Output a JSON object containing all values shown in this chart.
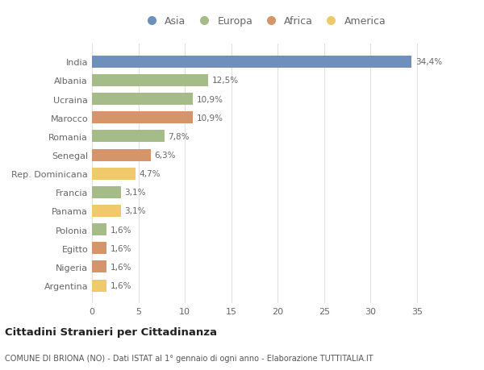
{
  "categories": [
    "India",
    "Albania",
    "Ucraina",
    "Marocco",
    "Romania",
    "Senegal",
    "Rep. Dominicana",
    "Francia",
    "Panama",
    "Polonia",
    "Egitto",
    "Nigeria",
    "Argentina"
  ],
  "values": [
    34.4,
    12.5,
    10.9,
    10.9,
    7.8,
    6.3,
    4.7,
    3.1,
    3.1,
    1.6,
    1.6,
    1.6,
    1.6
  ],
  "labels": [
    "34,4%",
    "12,5%",
    "10,9%",
    "10,9%",
    "7,8%",
    "6,3%",
    "4,7%",
    "3,1%",
    "3,1%",
    "1,6%",
    "1,6%",
    "1,6%",
    "1,6%"
  ],
  "colors": [
    "#6f8fbd",
    "#a5bb88",
    "#a5bb88",
    "#d4956a",
    "#a5bb88",
    "#d4956a",
    "#f0c96a",
    "#a5bb88",
    "#f0c96a",
    "#a5bb88",
    "#d4956a",
    "#d4956a",
    "#f0c96a"
  ],
  "legend": [
    {
      "label": "Asia",
      "color": "#6f8fbd"
    },
    {
      "label": "Europa",
      "color": "#a5bb88"
    },
    {
      "label": "Africa",
      "color": "#d4956a"
    },
    {
      "label": "America",
      "color": "#f0c96a"
    }
  ],
  "xlim": [
    0,
    37
  ],
  "xticks": [
    0,
    5,
    10,
    15,
    20,
    25,
    30,
    35
  ],
  "title": "Cittadini Stranieri per Cittadinanza",
  "subtitle": "COMUNE DI BRIONA (NO) - Dati ISTAT al 1° gennaio di ogni anno - Elaborazione TUTTITALIA.IT",
  "bg_color": "#ffffff",
  "plot_bg_color": "#ffffff",
  "grid_color": "#e0e0e0",
  "text_color": "#666666",
  "label_color": "#666666"
}
